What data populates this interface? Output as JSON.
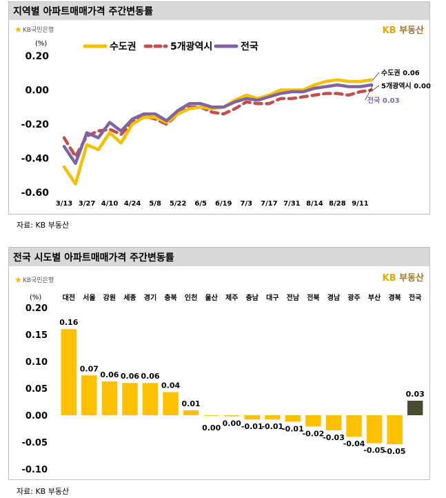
{
  "chart_data": [
    {
      "type": "line",
      "title": "지역별 아파트매매가격 주간변동률",
      "ylabel": "(%)",
      "ylim": [
        -0.6,
        0.2
      ],
      "yticks": [
        "0.20",
        "0.00",
        "-0.20",
        "-0.40",
        "-0.60"
      ],
      "ytick_values": [
        0.2,
        0.0,
        -0.2,
        -0.4,
        -0.6
      ],
      "xtick_labels": [
        "3/13",
        "3/27",
        "4/10",
        "4/24",
        "5/8",
        "5/22",
        "6/5",
        "6/19",
        "7/3",
        "7/17",
        "7/31",
        "8/14",
        "8/28",
        "9/11"
      ],
      "weeks": 28,
      "legend_position": "top",
      "series": [
        {
          "name": "수도권",
          "color": "#f6c000",
          "dash": false,
          "values": [
            -0.45,
            -0.55,
            -0.32,
            -0.35,
            -0.25,
            -0.31,
            -0.2,
            -0.16,
            -0.16,
            -0.19,
            -0.14,
            -0.11,
            -0.1,
            -0.11,
            -0.1,
            -0.06,
            -0.03,
            -0.05,
            -0.03,
            0.0,
            0.0,
            0.0,
            0.03,
            0.05,
            0.06,
            0.05,
            0.05,
            0.06
          ],
          "end_label": "수도권 0.06",
          "end_label_color": "#000000"
        },
        {
          "name": "5개광역시",
          "color": "#c0504d",
          "dash": true,
          "values": [
            -0.28,
            -0.39,
            -0.27,
            -0.24,
            -0.23,
            -0.26,
            -0.19,
            -0.15,
            -0.17,
            -0.2,
            -0.14,
            -0.1,
            -0.1,
            -0.13,
            -0.14,
            -0.11,
            -0.07,
            -0.08,
            -0.08,
            -0.05,
            -0.05,
            -0.04,
            -0.03,
            -0.02,
            -0.02,
            -0.03,
            -0.01,
            0.0
          ],
          "end_label": "5개광역시 0.00",
          "end_label_color": "#000000"
        },
        {
          "name": "전국",
          "color": "#8064a2",
          "dash": false,
          "values": [
            -0.33,
            -0.43,
            -0.25,
            -0.28,
            -0.19,
            -0.24,
            -0.17,
            -0.14,
            -0.14,
            -0.18,
            -0.12,
            -0.08,
            -0.08,
            -0.1,
            -0.1,
            -0.07,
            -0.05,
            -0.06,
            -0.04,
            -0.02,
            -0.01,
            -0.01,
            0.01,
            0.02,
            0.03,
            0.02,
            0.02,
            0.03
          ],
          "end_label": "전국 0.03",
          "end_label_color": "#8064a2"
        }
      ]
    },
    {
      "type": "bar",
      "title": "전국 시도별 아파트매매가격 주간변동률",
      "ylabel": "(%)",
      "ylim": [
        -0.1,
        0.2
      ],
      "yticks": [
        "0.20",
        "0.15",
        "0.10",
        "0.05",
        "0.00",
        "-0.05",
        "-0.10"
      ],
      "ytick_values": [
        0.2,
        0.15,
        0.1,
        0.05,
        0.0,
        -0.05,
        -0.1
      ],
      "categories": [
        "대전",
        "서울",
        "강원",
        "세종",
        "경기",
        "충북",
        "인천",
        "울산",
        "제주",
        "충남",
        "대구",
        "전남",
        "전북",
        "경남",
        "광주",
        "부산",
        "경북",
        "전국"
      ],
      "values": [
        0.16,
        0.074,
        0.063,
        0.06,
        0.06,
        0.043,
        0.009,
        0.0,
        -0.002,
        -0.008,
        -0.008,
        -0.012,
        -0.021,
        -0.028,
        -0.04,
        -0.052,
        -0.054,
        0.027
      ],
      "value_labels": [
        "0.16",
        "0.07",
        "0.06",
        "0.06",
        "0.06",
        "0.04",
        "0.01",
        "0.00",
        "0.00",
        "-0.01",
        "-0.01",
        "-0.01",
        "-0.02",
        "-0.03",
        "-0.04",
        "-0.05",
        "-0.05",
        "0.03"
      ],
      "bar_color": "#ffc000",
      "highlight_color": "#4a4a35",
      "highlight_category": "전국"
    }
  ],
  "panels": {
    "top": {
      "title": "지역별 아파트매매가격 주간변동률",
      "source": "자료: KB 부동산"
    },
    "bottom": {
      "title": "전국 시도별 아파트매매가격 주간변동률",
      "source": "자료: KB 부동산"
    }
  },
  "branding": {
    "bank_logo_text": "KB국민은행",
    "kb_text": "KB",
    "realestate_text": "부동산"
  }
}
